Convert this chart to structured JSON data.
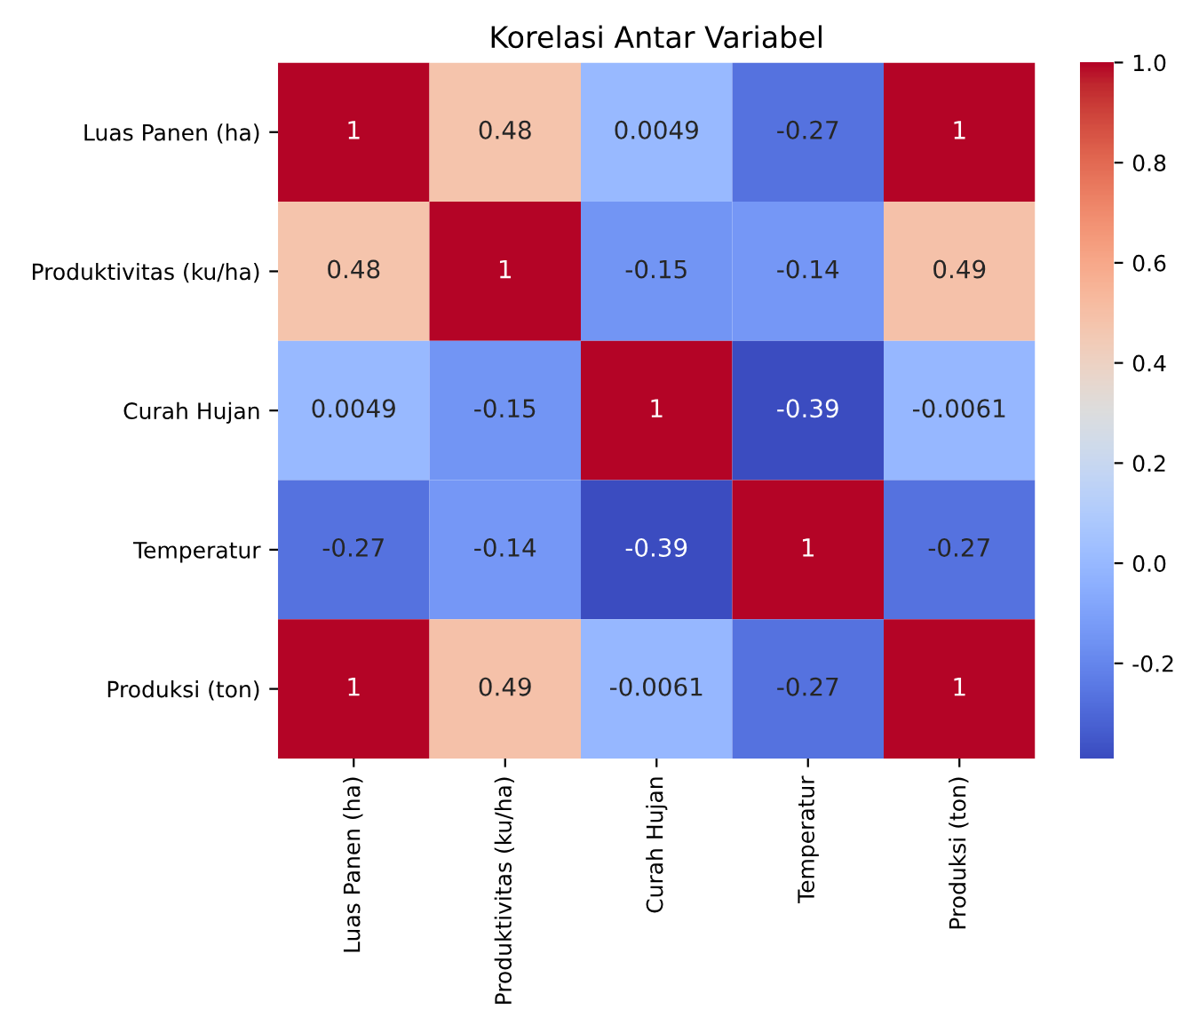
{
  "chart_data": {
    "type": "heatmap",
    "title": "Korelasi Antar Variabel",
    "categories": [
      "Luas Panen (ha)",
      "Produktivitas (ku/ha)",
      "Curah Hujan",
      "Temperatur",
      "Produksi (ton)"
    ],
    "y_categories": [
      "Luas Panen (ha)",
      "Produktivitas (ku/ha)",
      "Curah Hujan",
      "Temperatur",
      "Produksi (ton)"
    ],
    "cells": [
      [
        1,
        0.48,
        0.0049,
        -0.27,
        1
      ],
      [
        0.48,
        1,
        -0.15,
        -0.14,
        0.49
      ],
      [
        0.0049,
        -0.15,
        1,
        -0.39,
        -0.0061
      ],
      [
        -0.27,
        -0.14,
        -0.39,
        1,
        -0.27
      ],
      [
        1,
        0.49,
        -0.0061,
        -0.27,
        1
      ]
    ],
    "clim": [
      -0.39,
      1
    ],
    "cticks": [
      -0.2,
      {
        "value": 0,
        "label": "0.0"
      },
      0.2,
      0.4,
      0.6,
      0.8,
      {
        "value": 1,
        "label": "1.0"
      }
    ],
    "data_labels": true
  }
}
